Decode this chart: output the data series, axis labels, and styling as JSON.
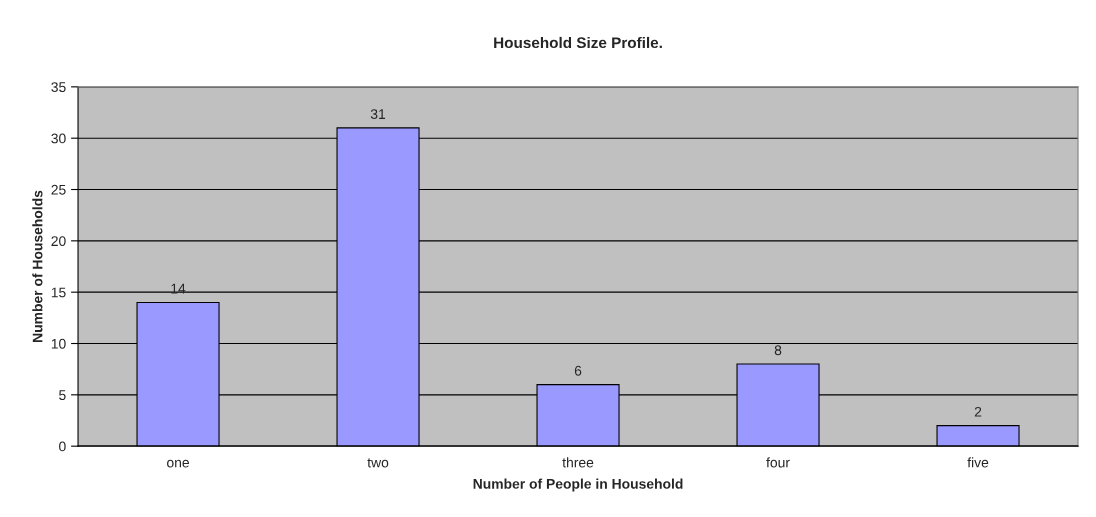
{
  "chart_data": {
    "type": "bar",
    "title": "Household Size Profile.",
    "xlabel": "Number of People in Household",
    "ylabel": "Number of Households",
    "categories": [
      "one",
      "two",
      "three",
      "four",
      "five"
    ],
    "values": [
      14,
      31,
      6,
      8,
      2
    ],
    "color": "#9999ff",
    "ylim": [
      0,
      35
    ],
    "yticks": [
      0,
      5,
      10,
      15,
      20,
      25,
      30,
      35
    ],
    "grid": "y",
    "data_labels": true,
    "legend": false
  }
}
